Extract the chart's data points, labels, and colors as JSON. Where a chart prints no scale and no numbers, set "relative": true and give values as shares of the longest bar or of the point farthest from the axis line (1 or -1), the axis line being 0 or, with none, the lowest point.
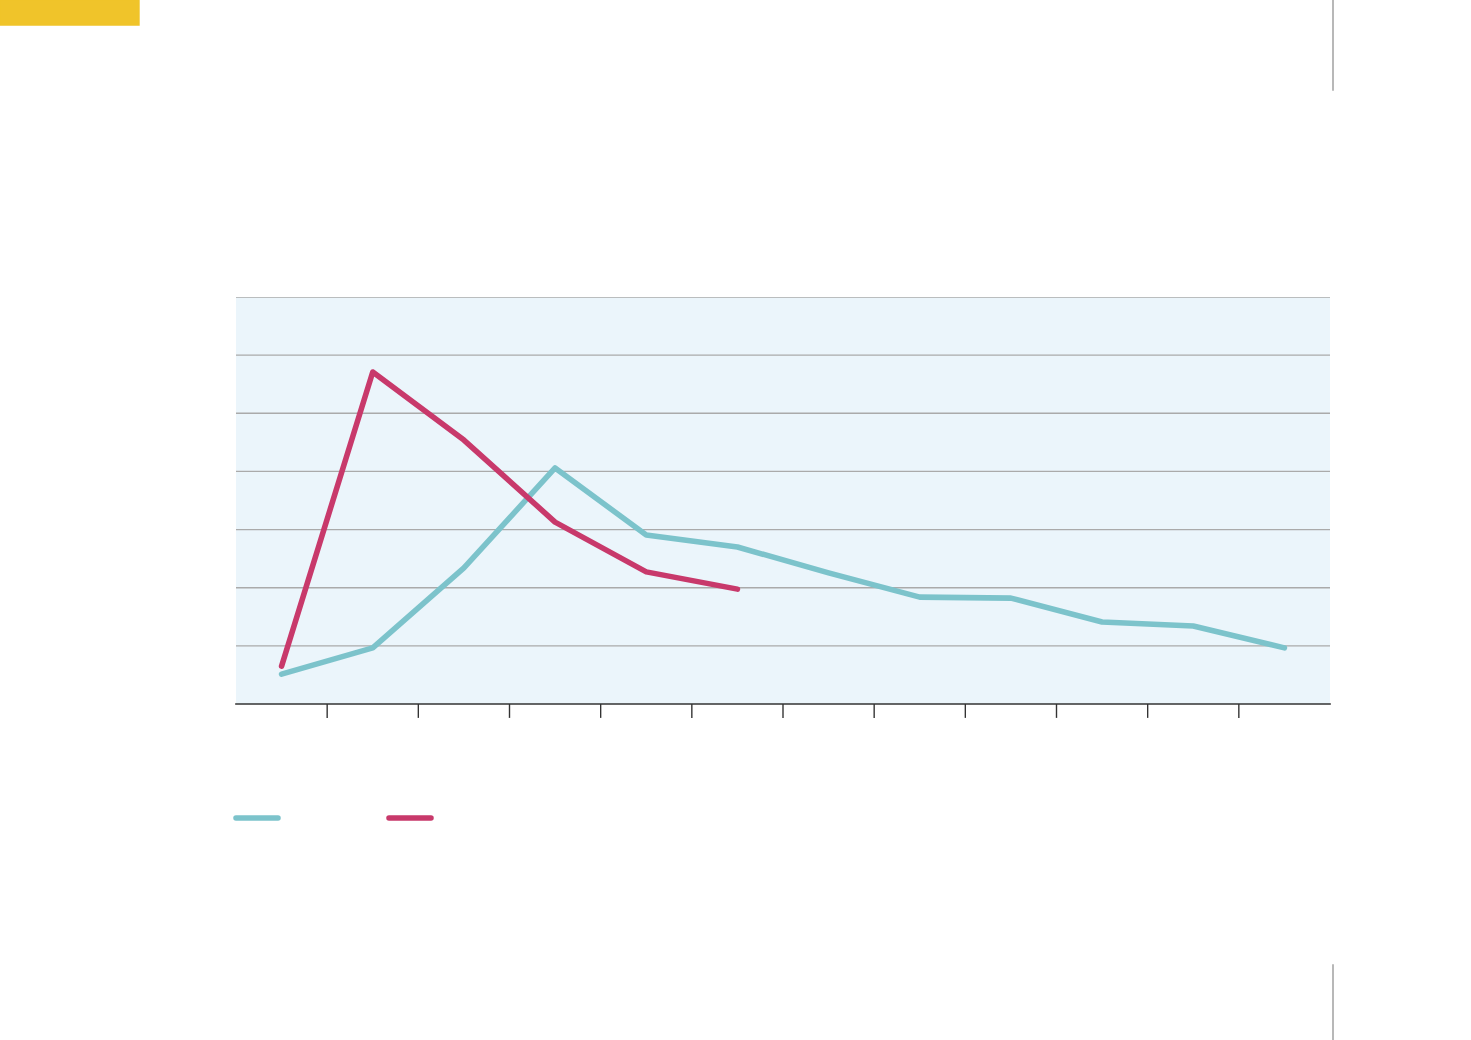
{
  "chart_data": {
    "type": "line",
    "relative": true,
    "grid": "y",
    "marker": "none",
    "line_style": "solid",
    "categories": [
      null,
      null,
      null,
      null,
      null,
      null,
      null,
      null,
      null,
      null,
      null,
      null
    ],
    "series": [
      {
        "color": "#7cc3cb",
        "values": [
          0.09,
          0.169,
          0.41,
          0.711,
          0.509,
          0.473,
          0.395,
          0.322,
          0.319,
          0.247,
          0.235,
          0.169
        ]
      },
      {
        "color": "#c8396b",
        "values": [
          0.114,
          1,
          0.795,
          0.548,
          0.398,
          0.346,
          null,
          null,
          null,
          null,
          null,
          null
        ]
      }
    ]
  }
}
